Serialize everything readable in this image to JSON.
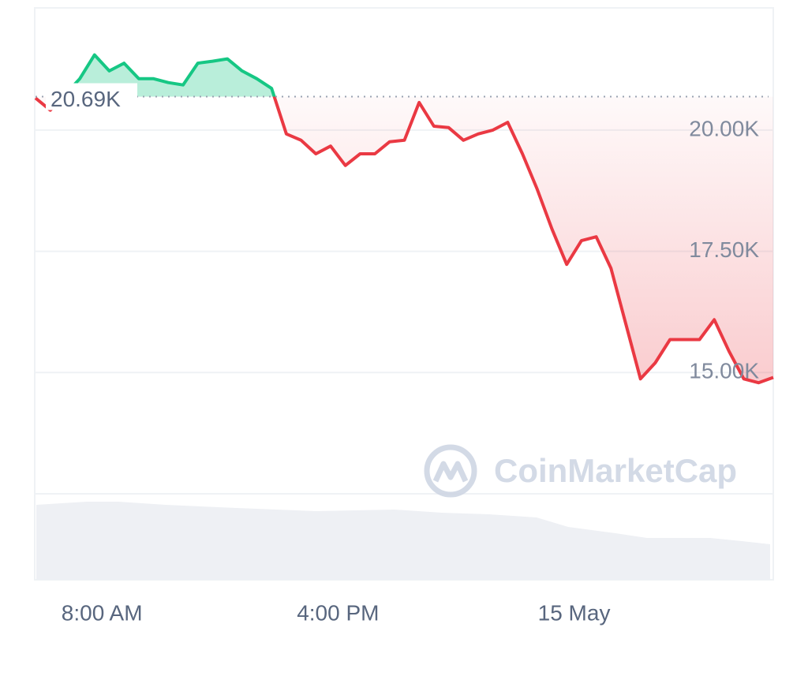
{
  "chart_data": {
    "type": "line",
    "x": [
      5.75,
      6.25,
      6.75,
      7.25,
      7.75,
      8.25,
      8.75,
      9.25,
      9.75,
      10.25,
      10.75,
      11.25,
      11.75,
      12.25,
      12.75,
      13.25,
      13.75,
      14.25,
      14.75,
      15.25,
      15.75,
      16.25,
      16.75,
      17.25,
      17.75,
      18.25,
      18.75,
      19.25,
      19.75,
      20.25,
      20.75,
      21.25,
      21.75,
      22.25,
      22.75,
      23.25,
      23.75,
      24.25,
      24.75,
      25.25,
      25.75,
      26.25,
      26.75,
      27.25,
      27.75,
      28.25,
      28.75,
      29.25,
      29.75,
      30.25,
      30.75
    ],
    "series": [
      {
        "values": [
          20660,
          20410,
          20730,
          21060,
          21550,
          21220,
          21380,
          21060,
          21060,
          20980,
          20930,
          21380,
          21420,
          21470,
          21220,
          21060,
          20860,
          19920,
          19790,
          19510,
          19670,
          19270,
          19510,
          19510,
          19760,
          19790,
          20570,
          20080,
          20050,
          19790,
          19920,
          20000,
          20160,
          19510,
          18780,
          17960,
          17230,
          17720,
          17800,
          17150,
          16010,
          14870,
          15200,
          15680,
          15680,
          15680,
          16090,
          15440,
          14870,
          14790,
          14900
        ]
      }
    ],
    "up_color": "#16c784",
    "down_color": "#ea3943",
    "baseline": {
      "value": 20690,
      "label": "20.69K"
    },
    "xlim": [
      5.75,
      30.75
    ],
    "xticks": [
      {
        "value": 8,
        "label": "8:00 AM"
      },
      {
        "value": 16,
        "label": "4:00 PM"
      },
      {
        "value": 24,
        "label": "15 May"
      }
    ],
    "ylim": [
      12500,
      22520
    ],
    "yticks": [
      {
        "value": 15000,
        "label": "15.00K"
      },
      {
        "value": 17500,
        "label": "17.50K"
      },
      {
        "value": 20000,
        "label": "20.00K"
      }
    ],
    "grid": true,
    "watermark": "CoinMarketCap"
  }
}
